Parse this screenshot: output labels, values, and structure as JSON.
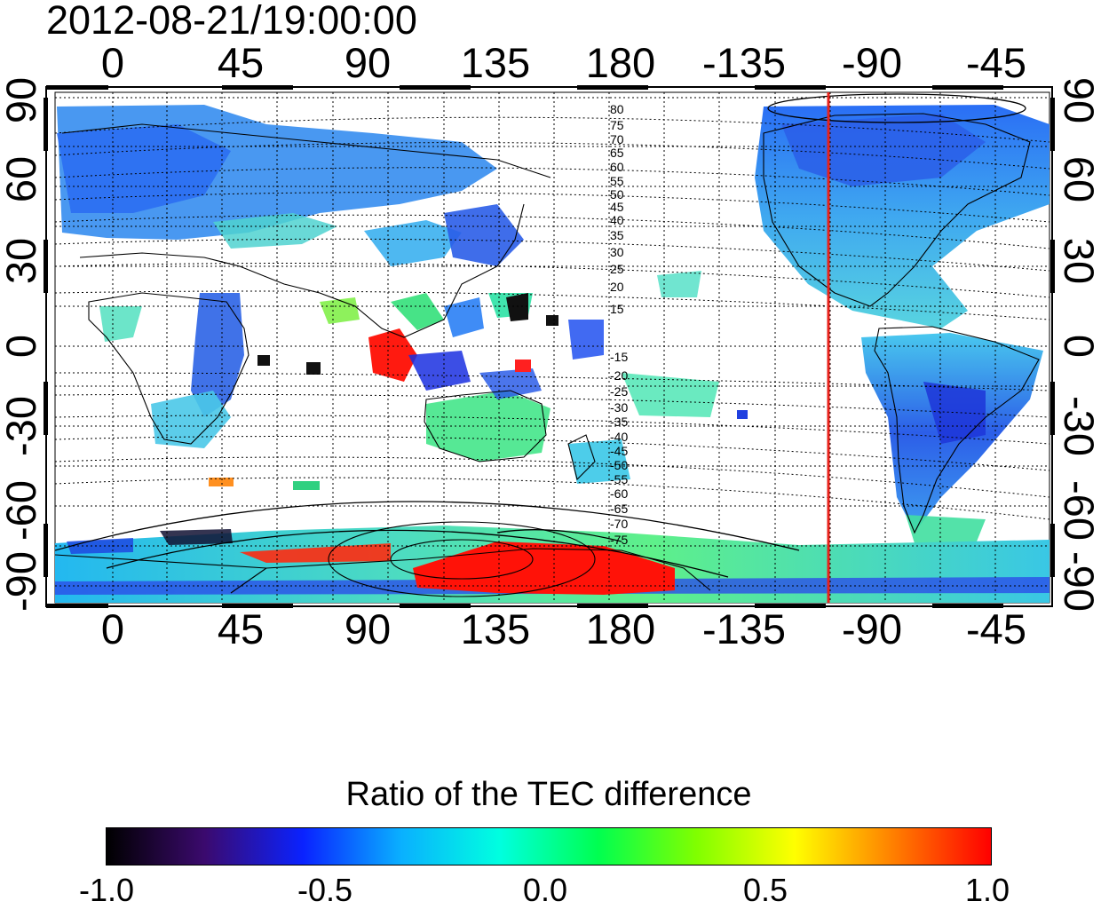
{
  "title": "2012-08-21/19:00:00",
  "map": {
    "lon_ticks": [
      "0",
      "45",
      "90",
      "135",
      "180",
      "-135",
      "-90",
      "-45"
    ],
    "lat_ticks": [
      "90",
      "60",
      "30",
      "0",
      "-30",
      "-60",
      "-90"
    ],
    "magnetic_latitude_labels": [
      "80",
      "75",
      "70",
      "65",
      "60",
      "55",
      "50",
      "45",
      "40",
      "35",
      "30",
      "25",
      "20",
      "15",
      "-15",
      "-20",
      "-25",
      "-30",
      "-35",
      "-40",
      "-45",
      "-50",
      "-55",
      "-60",
      "-65",
      "-70",
      "-75"
    ],
    "terminator_longitude": -102,
    "terminator_color": "#e8231c",
    "ocean_color": "#ffffff"
  },
  "colorbar": {
    "title": "Ratio of the TEC difference",
    "ticks": [
      "-1.0",
      "-0.5",
      "0.0",
      "0.5",
      "1.0"
    ],
    "range": [
      -1.0,
      1.0
    ],
    "colors": [
      "#000000",
      "#3b0a6e",
      "#0a22ff",
      "#0ab0ff",
      "#00ffe0",
      "#00ff50",
      "#80ff00",
      "#ffff00",
      "#ff8000",
      "#ff0000"
    ]
  }
}
